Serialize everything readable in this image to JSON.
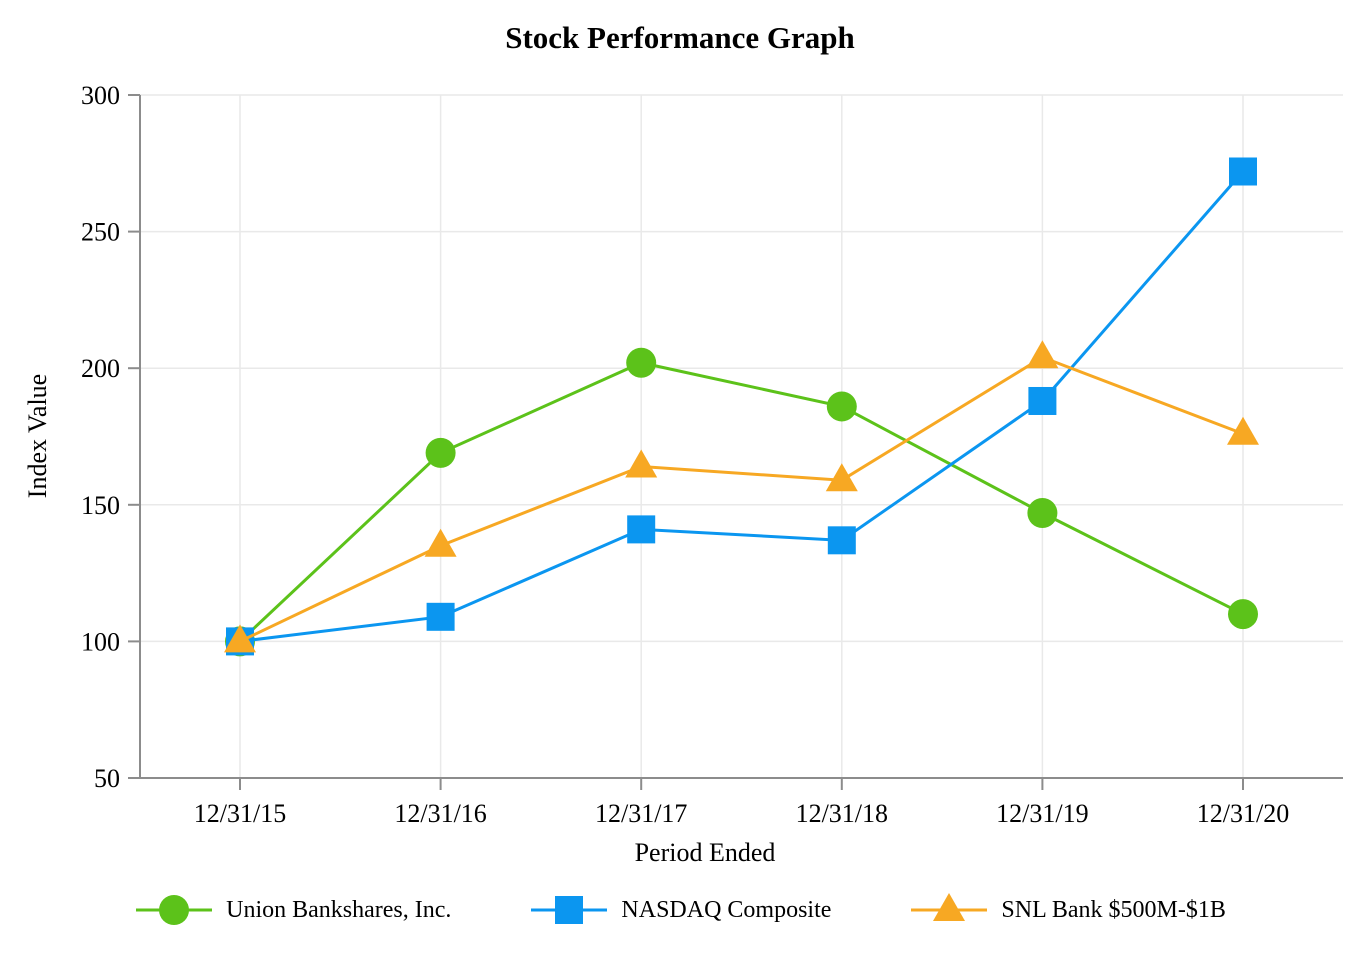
{
  "chart_data": {
    "type": "line",
    "title": "Stock Performance Graph",
    "xlabel": "Period Ended",
    "ylabel": "Index Value",
    "categories": [
      "12/31/15",
      "12/31/16",
      "12/31/17",
      "12/31/18",
      "12/31/19",
      "12/31/20"
    ],
    "yticks": [
      50,
      100,
      150,
      200,
      250,
      300
    ],
    "ylim": [
      50,
      300
    ],
    "grid": true,
    "legend_position": "bottom",
    "series": [
      {
        "name": "Union Bankshares, Inc.",
        "marker": "circle",
        "color": "#5cc21a",
        "values": [
          100,
          169,
          202,
          186,
          147,
          110
        ]
      },
      {
        "name": "NASDAQ Composite",
        "marker": "square",
        "color": "#0b96f0",
        "values": [
          100,
          109,
          141,
          137,
          188,
          272
        ]
      },
      {
        "name": "SNL Bank $500M-$1B",
        "marker": "triangle",
        "color": "#f7a823",
        "values": [
          100,
          135,
          164,
          159,
          204,
          176
        ]
      }
    ],
    "colors": {
      "grid": "#e9e9e9",
      "axis": "#8c8c8c",
      "text": "#000000"
    }
  }
}
